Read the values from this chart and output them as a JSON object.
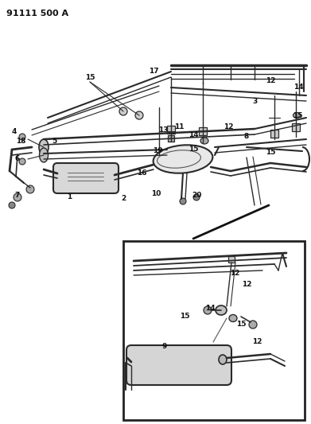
{
  "title": "91111 500 A",
  "bg_color": "#ffffff",
  "lc": "#2a2a2a",
  "fig_w": 3.91,
  "fig_h": 5.33,
  "dpi": 100,
  "main_labels": [
    [
      113,
      97,
      "15"
    ],
    [
      193,
      89,
      "17"
    ],
    [
      340,
      102,
      "12"
    ],
    [
      375,
      110,
      "14"
    ],
    [
      18,
      165,
      "4"
    ],
    [
      26,
      178,
      "18"
    ],
    [
      68,
      178,
      "5"
    ],
    [
      22,
      200,
      "6"
    ],
    [
      22,
      245,
      "7"
    ],
    [
      87,
      248,
      "1"
    ],
    [
      155,
      250,
      "2"
    ],
    [
      178,
      218,
      "16"
    ],
    [
      198,
      190,
      "19"
    ],
    [
      205,
      163,
      "13"
    ],
    [
      225,
      160,
      "11"
    ],
    [
      243,
      170,
      "14"
    ],
    [
      310,
      172,
      "8"
    ],
    [
      340,
      192,
      "15"
    ],
    [
      287,
      160,
      "12"
    ],
    [
      243,
      188,
      "15"
    ],
    [
      320,
      127,
      "3"
    ],
    [
      374,
      145,
      "15"
    ],
    [
      196,
      244,
      "10"
    ],
    [
      247,
      246,
      "20"
    ]
  ],
  "inset_labels": [
    [
      295,
      343,
      "12"
    ],
    [
      310,
      358,
      "12"
    ],
    [
      264,
      387,
      "14"
    ],
    [
      232,
      398,
      "15"
    ],
    [
      303,
      408,
      "15"
    ],
    [
      207,
      435,
      "9"
    ],
    [
      323,
      430,
      "12"
    ]
  ]
}
